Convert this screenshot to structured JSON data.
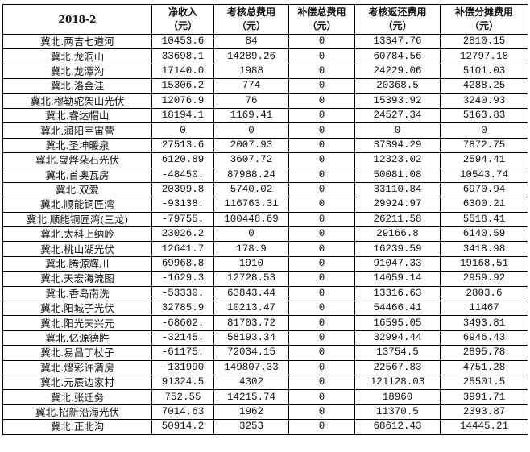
{
  "table": {
    "headers": [
      {
        "line1": "2018-2",
        "line2": ""
      },
      {
        "line1": "净收入",
        "line2": "（元）"
      },
      {
        "line1": "考核总费用",
        "line2": "（元）"
      },
      {
        "line1": "补偿总费用",
        "line2": "（元）"
      },
      {
        "line1": "考核返还费用",
        "line2": "（元）"
      },
      {
        "line1": "补偿分摊费用",
        "line2": "（元）"
      }
    ],
    "rows": [
      [
        "冀北.两吉七道河",
        "10453.6",
        "84",
        "0",
        "13347.76",
        "2810.15"
      ],
      [
        "冀北.龙洞山",
        "33698.1",
        "14289.26",
        "0",
        "60784.56",
        "12797.18"
      ],
      [
        "冀北.龙潭沟",
        "17140.0",
        "1988",
        "0",
        "24229.06",
        "5101.03"
      ],
      [
        "冀北.洛金洼",
        "15306.2",
        "774",
        "0",
        "20368.5",
        "4288.25"
      ],
      [
        "冀北.穆勒驼架山光伏",
        "12076.9",
        "76",
        "0",
        "15393.92",
        "3240.93"
      ],
      [
        "冀北.睿达帽山",
        "18194.1",
        "1169.41",
        "0",
        "24527.34",
        "5163.83"
      ],
      [
        "冀北.润阳宇宙营",
        "0",
        "0",
        "0",
        "0",
        "0"
      ],
      [
        "冀北.圣坤暖泉",
        "27513.6",
        "2007.93",
        "0",
        "37394.29",
        "7872.75"
      ],
      [
        "冀北.晟烨朵石光伏",
        "6120.89",
        "3607.72",
        "0",
        "12323.02",
        "2594.41"
      ],
      [
        "冀北.首奥瓦房",
        "-48450.",
        "87988.24",
        "0",
        "50081.08",
        "10543.74"
      ],
      [
        "冀北.双爱",
        "20399.8",
        "5740.02",
        "0",
        "33110.84",
        "6970.94"
      ],
      [
        "冀北.顺能铜匠湾",
        "-93138.",
        "116763.31",
        "0",
        "29924.97",
        "6300.21"
      ],
      [
        "冀北.顺能铜匠湾(三龙)",
        "-79755.",
        "100448.69",
        "0",
        "26211.58",
        "5518.41"
      ],
      [
        "冀北.太科上纳岭",
        "23026.2",
        "0",
        "0",
        "29166.8",
        "6140.59"
      ],
      [
        "冀北.桃山湖光伏",
        "12641.7",
        "178.9",
        "0",
        "16239.59",
        "3418.98"
      ],
      [
        "冀北.腾源辉川",
        "69968.8",
        "1910",
        "0",
        "91047.33",
        "19168.51"
      ],
      [
        "冀北.天宏海流图",
        "-1629.3",
        "12728.53",
        "0",
        "14059.14",
        "2959.92"
      ],
      [
        "冀北.香岛南洗",
        "-53330.",
        "63843.44",
        "0",
        "13316.63",
        "2803.6"
      ],
      [
        "冀北.阳城子光伏",
        "32785.9",
        "10213.47",
        "0",
        "54466.41",
        "11467"
      ],
      [
        "冀北.阳光天兴元",
        "-68602.",
        "81703.72",
        "0",
        "16595.05",
        "3493.81"
      ],
      [
        "冀北.亿源德胜",
        "-32145.",
        "58193.34",
        "0",
        "32994.44",
        "6946.43"
      ],
      [
        "冀北.易昌丁杖子",
        "-61175.",
        "72034.15",
        "0",
        "13754.5",
        "2895.78"
      ],
      [
        "冀北.熠彩许清房",
        "-131990",
        "149807.33",
        "0",
        "22567.83",
        "4751.28"
      ],
      [
        "冀北.元辰边家村",
        "91324.5",
        "4302",
        "0",
        "121128.03",
        "25501.5"
      ],
      [
        "冀北.张迁务",
        "752.55",
        "14215.74",
        "0",
        "18960",
        "3991.71"
      ],
      [
        "冀北.招新沿海光伏",
        "7014.63",
        "1962",
        "0",
        "11370.5",
        "2393.87"
      ],
      [
        "冀北.正北沟",
        "50914.2",
        "3253",
        "0",
        "68612.43",
        "14445.21"
      ]
    ]
  }
}
